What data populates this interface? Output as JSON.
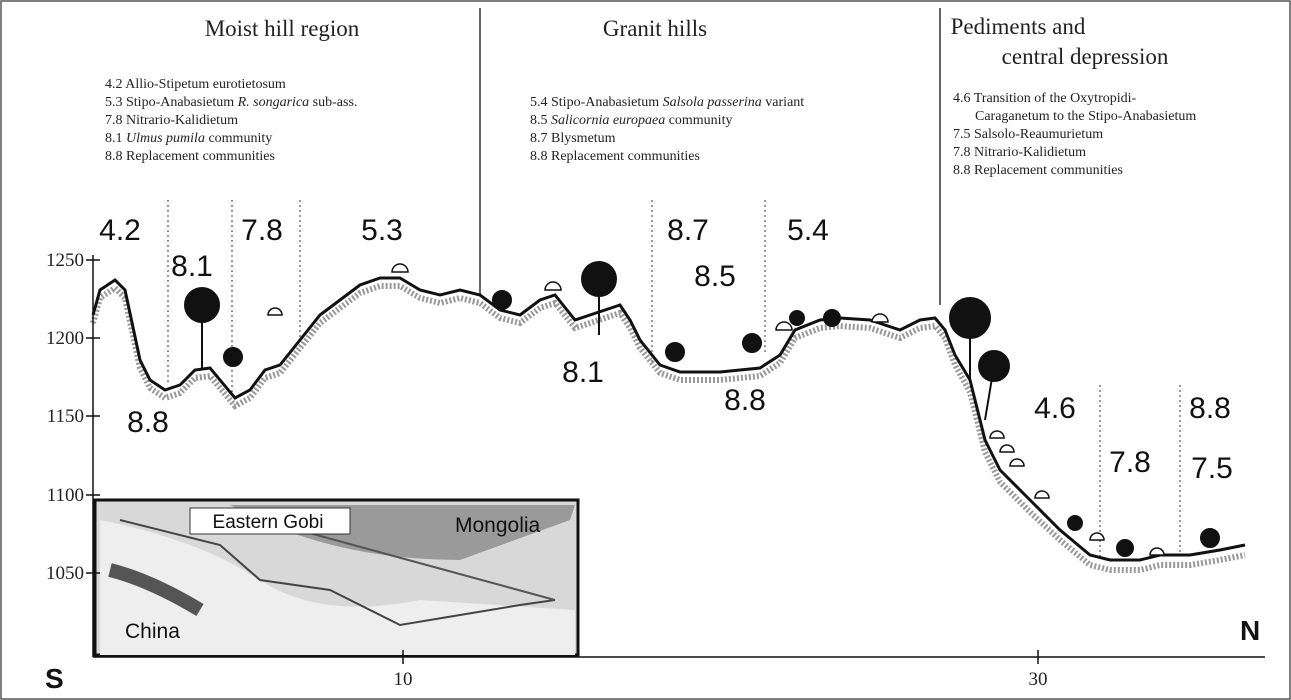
{
  "regions": [
    {
      "title_lines": [
        "Moist hill region"
      ],
      "legend": [
        [
          "4.2 Allio-Stipetum eurotietosum"
        ],
        [
          "5.3 Stipo-Anabasietum",
          "R. songarica",
          "sub-ass."
        ],
        [
          "7.8 Nitrario-Kalidietum"
        ],
        [
          "8.1",
          "Ulmus pumila",
          "community"
        ],
        [
          "8.8 Replacement communities"
        ]
      ]
    },
    {
      "title_lines": [
        "Granit hills"
      ],
      "legend": [
        [
          "5.4 Stipo-Anabasietum",
          "Salsola passerina",
          "variant"
        ],
        [
          "8.5",
          "Salicornia europaea",
          "community"
        ],
        [
          "8.7 Blysmetum"
        ],
        [
          "8.8 Replacement communities"
        ]
      ]
    },
    {
      "title_lines": [
        "Pediments and",
        "central depression"
      ],
      "legend": [
        [
          "4.6 Transition of the Oxytropidi-"
        ],
        [
          "Caraganetum to the Stipo-Anabasietum"
        ],
        [
          "7.5 Salsolo-Reaumurietum"
        ],
        [
          "7.8 Nitrario-Kalidietum"
        ],
        [
          "8.8 Replacement communities"
        ]
      ]
    }
  ],
  "axis": {
    "y_ticks": [
      "1250",
      "1200",
      "1150",
      "1100",
      "1050"
    ],
    "x_ticks": [
      "10",
      "30"
    ],
    "south": "S",
    "north": "N"
  },
  "unit_labels": [
    "4.2",
    "8.1",
    "7.8",
    "5.3",
    "8.8",
    "8.7",
    "5.4",
    "8.5",
    "8.1",
    "8.8",
    "4.6",
    "7.8",
    "8.8",
    "7.5"
  ],
  "map": {
    "labels": [
      "Eastern Gobi",
      "Mongolia",
      "China"
    ]
  }
}
